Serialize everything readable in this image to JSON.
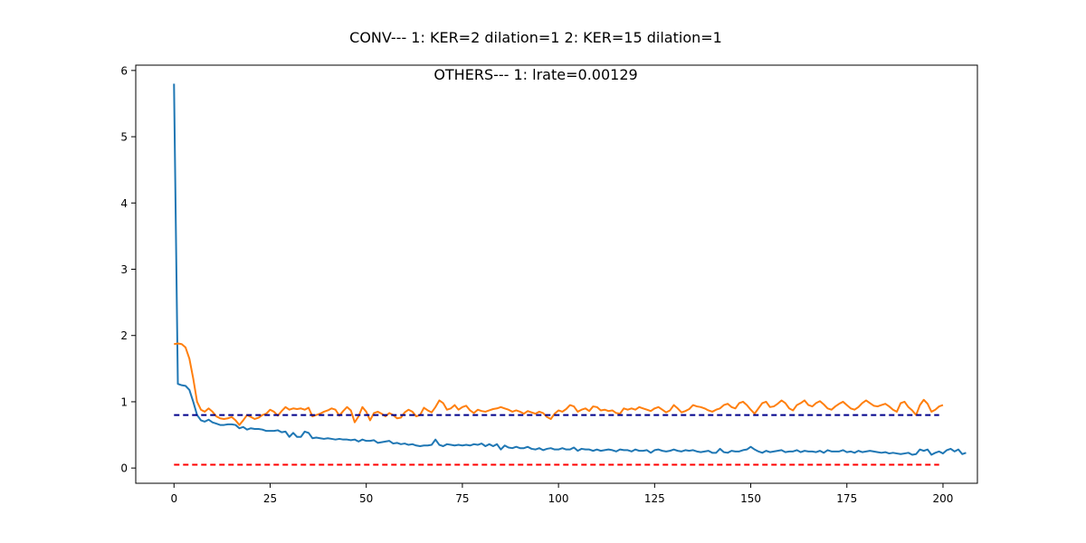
{
  "chart_data": {
    "type": "line",
    "title": "CONV--- 1: KER=2   dilation=1   2: KER=15   dilation=1",
    "subtitle": "OTHERS--- 1: lrate=0.00129",
    "xlabel": "",
    "ylabel": "",
    "xlim": [
      -9.95,
      208.95
    ],
    "ylim": [
      -0.23,
      6.08
    ],
    "xticks": [
      0,
      25,
      50,
      75,
      100,
      125,
      150,
      175,
      200
    ],
    "yticks": [
      0,
      1,
      2,
      3,
      4,
      5,
      6
    ],
    "grid": false,
    "legend": "none",
    "series": [
      {
        "color": "#1f77b4",
        "style": "solid",
        "x_start": 0,
        "values": [
          5.8,
          1.27,
          1.25,
          1.24,
          1.18,
          1.0,
          0.8,
          0.72,
          0.7,
          0.73,
          0.69,
          0.67,
          0.65,
          0.65,
          0.66,
          0.66,
          0.65,
          0.6,
          0.62,
          0.58,
          0.6,
          0.59,
          0.59,
          0.58,
          0.56,
          0.56,
          0.56,
          0.57,
          0.54,
          0.55,
          0.47,
          0.53,
          0.47,
          0.47,
          0.55,
          0.53,
          0.45,
          0.46,
          0.45,
          0.44,
          0.45,
          0.44,
          0.43,
          0.44,
          0.43,
          0.43,
          0.42,
          0.43,
          0.4,
          0.43,
          0.41,
          0.41,
          0.42,
          0.38,
          0.39,
          0.4,
          0.41,
          0.37,
          0.38,
          0.36,
          0.37,
          0.35,
          0.36,
          0.34,
          0.33,
          0.34,
          0.34,
          0.35,
          0.43,
          0.35,
          0.33,
          0.36,
          0.35,
          0.34,
          0.35,
          0.34,
          0.35,
          0.34,
          0.36,
          0.35,
          0.37,
          0.33,
          0.36,
          0.33,
          0.36,
          0.28,
          0.34,
          0.31,
          0.3,
          0.32,
          0.3,
          0.3,
          0.32,
          0.29,
          0.28,
          0.3,
          0.27,
          0.29,
          0.3,
          0.28,
          0.28,
          0.3,
          0.28,
          0.28,
          0.31,
          0.26,
          0.29,
          0.28,
          0.28,
          0.26,
          0.28,
          0.26,
          0.27,
          0.28,
          0.27,
          0.25,
          0.28,
          0.27,
          0.27,
          0.25,
          0.28,
          0.26,
          0.26,
          0.27,
          0.23,
          0.27,
          0.28,
          0.26,
          0.25,
          0.26,
          0.28,
          0.26,
          0.25,
          0.27,
          0.26,
          0.27,
          0.25,
          0.24,
          0.25,
          0.26,
          0.23,
          0.23,
          0.29,
          0.24,
          0.23,
          0.26,
          0.25,
          0.25,
          0.27,
          0.28,
          0.32,
          0.28,
          0.25,
          0.23,
          0.26,
          0.24,
          0.25,
          0.26,
          0.27,
          0.24,
          0.25,
          0.25,
          0.27,
          0.24,
          0.26,
          0.25,
          0.25,
          0.24,
          0.26,
          0.23,
          0.27,
          0.25,
          0.25,
          0.25,
          0.27,
          0.24,
          0.25,
          0.23,
          0.26,
          0.24,
          0.25,
          0.26,
          0.25,
          0.24,
          0.23,
          0.24,
          0.22,
          0.23,
          0.22,
          0.21,
          0.22,
          0.23,
          0.2,
          0.21,
          0.28,
          0.26,
          0.28,
          0.2,
          0.23,
          0.25,
          0.22,
          0.27,
          0.29,
          0.25,
          0.28,
          0.21,
          0.23
        ]
      },
      {
        "color": "#ff7f0e",
        "style": "solid",
        "x_start": 0,
        "values": [
          1.87,
          1.88,
          1.87,
          1.82,
          1.65,
          1.35,
          1.0,
          0.88,
          0.85,
          0.9,
          0.85,
          0.78,
          0.75,
          0.74,
          0.75,
          0.77,
          0.72,
          0.65,
          0.72,
          0.8,
          0.77,
          0.74,
          0.76,
          0.8,
          0.82,
          0.88,
          0.85,
          0.79,
          0.86,
          0.92,
          0.88,
          0.9,
          0.89,
          0.9,
          0.88,
          0.91,
          0.78,
          0.8,
          0.82,
          0.85,
          0.87,
          0.9,
          0.88,
          0.79,
          0.86,
          0.92,
          0.87,
          0.69,
          0.78,
          0.92,
          0.85,
          0.72,
          0.83,
          0.85,
          0.82,
          0.78,
          0.83,
          0.8,
          0.75,
          0.76,
          0.84,
          0.88,
          0.85,
          0.78,
          0.8,
          0.91,
          0.87,
          0.84,
          0.92,
          1.02,
          0.98,
          0.88,
          0.9,
          0.95,
          0.88,
          0.92,
          0.94,
          0.87,
          0.83,
          0.88,
          0.86,
          0.85,
          0.87,
          0.89,
          0.9,
          0.92,
          0.9,
          0.88,
          0.85,
          0.87,
          0.85,
          0.82,
          0.86,
          0.84,
          0.82,
          0.85,
          0.83,
          0.77,
          0.74,
          0.82,
          0.87,
          0.85,
          0.89,
          0.95,
          0.93,
          0.85,
          0.88,
          0.9,
          0.86,
          0.93,
          0.92,
          0.87,
          0.88,
          0.86,
          0.87,
          0.83,
          0.82,
          0.9,
          0.88,
          0.9,
          0.88,
          0.92,
          0.9,
          0.88,
          0.86,
          0.9,
          0.92,
          0.88,
          0.84,
          0.87,
          0.95,
          0.9,
          0.84,
          0.86,
          0.89,
          0.95,
          0.93,
          0.92,
          0.9,
          0.87,
          0.85,
          0.88,
          0.9,
          0.95,
          0.97,
          0.92,
          0.9,
          0.98,
          1.0,
          0.95,
          0.88,
          0.82,
          0.9,
          0.98,
          1.0,
          0.92,
          0.93,
          0.97,
          1.02,
          0.98,
          0.9,
          0.87,
          0.95,
          0.98,
          1.02,
          0.95,
          0.93,
          0.98,
          1.01,
          0.96,
          0.9,
          0.88,
          0.93,
          0.97,
          1.0,
          0.95,
          0.9,
          0.88,
          0.92,
          0.98,
          1.02,
          0.98,
          0.94,
          0.93,
          0.95,
          0.97,
          0.93,
          0.88,
          0.85,
          0.98,
          1.0,
          0.92,
          0.87,
          0.8,
          0.95,
          1.03,
          0.97,
          0.85,
          0.88,
          0.93,
          0.95
        ]
      },
      {
        "color": "#00008b",
        "style": "dashed",
        "x": [
          0,
          199
        ],
        "values": [
          0.8,
          0.8
        ]
      },
      {
        "color": "#ff0000",
        "style": "dashed",
        "x": [
          0,
          199
        ],
        "values": [
          0.05,
          0.05
        ]
      }
    ]
  }
}
